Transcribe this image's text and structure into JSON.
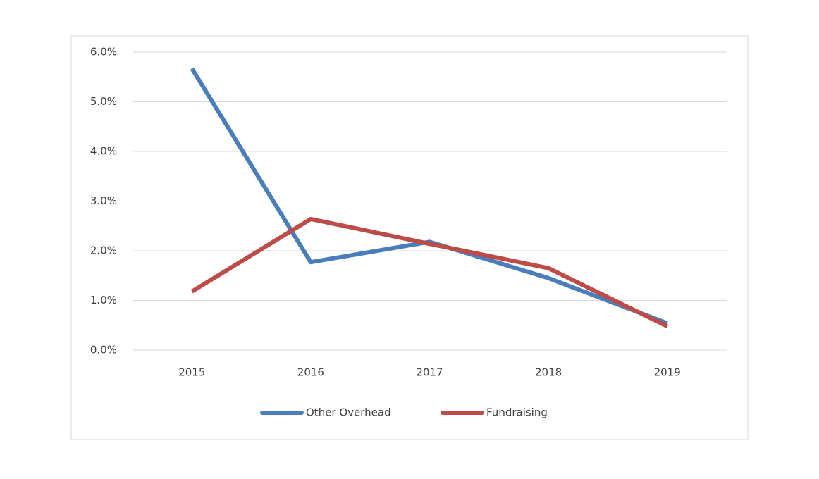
{
  "chart_data": {
    "type": "line",
    "categories": [
      "2015",
      "2016",
      "2017",
      "2018",
      "2019"
    ],
    "series": [
      {
        "name": "Other Overhead",
        "color": "#4a7ebb",
        "values": [
          5.67,
          1.77,
          2.18,
          1.45,
          0.54
        ]
      },
      {
        "name": "Fundraising",
        "color": "#be4b48",
        "values": [
          1.18,
          2.64,
          2.14,
          1.65,
          0.48
        ]
      }
    ],
    "ylim": [
      0,
      6
    ],
    "yticks": [
      {
        "value": 0,
        "label": "0.0%"
      },
      {
        "value": 1,
        "label": "1.0%"
      },
      {
        "value": 2,
        "label": "2.0%"
      },
      {
        "value": 3,
        "label": "3.0%"
      },
      {
        "value": 4,
        "label": "4.0%"
      },
      {
        "value": 5,
        "label": "5.0%"
      },
      {
        "value": 6,
        "label": "6.0%"
      }
    ],
    "grid": true,
    "legend": "bottom"
  }
}
